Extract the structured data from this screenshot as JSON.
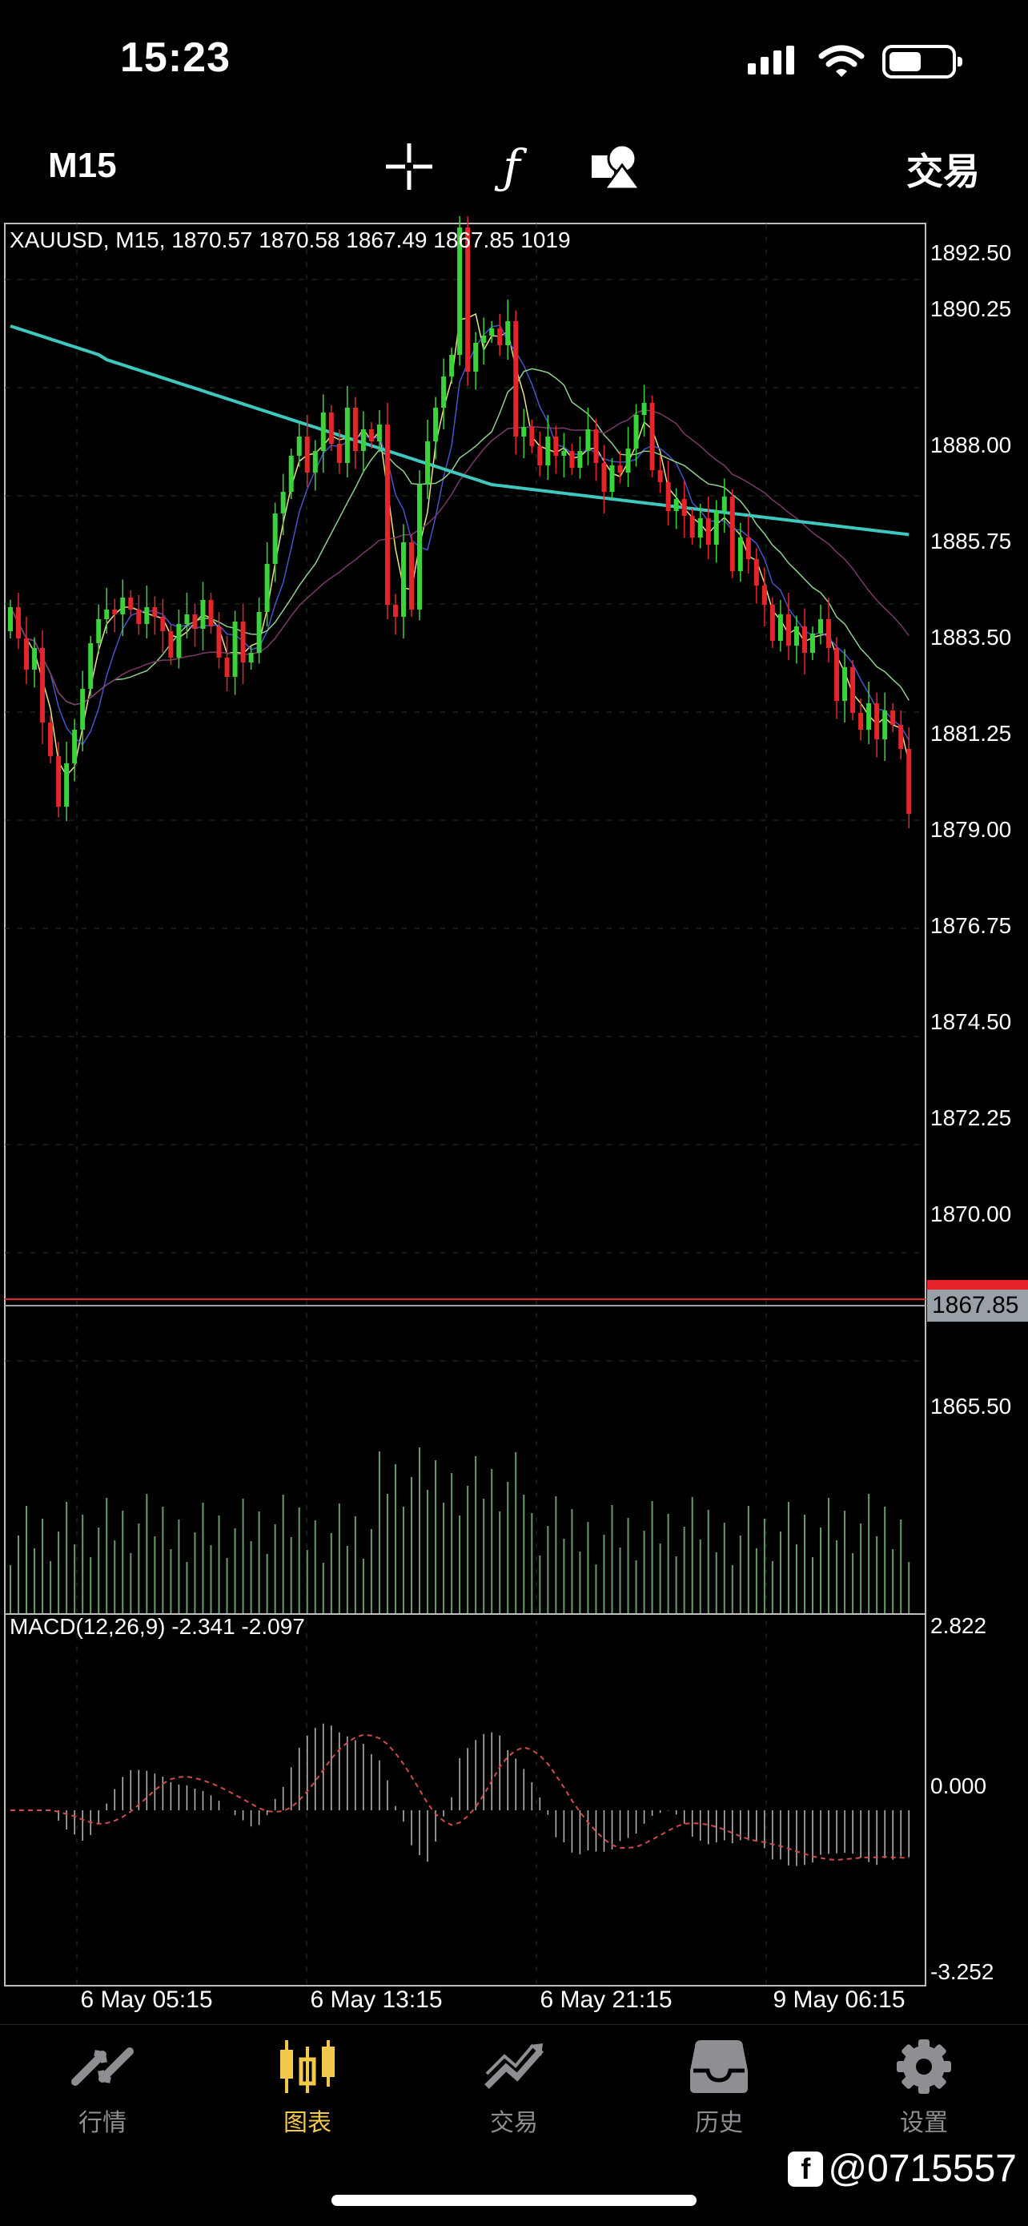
{
  "status_bar": {
    "time": "15:23"
  },
  "toolbar": {
    "period": "M15",
    "trade_label": "交易",
    "icons": [
      "crosshair-icon",
      "function-icon",
      "objects-icon"
    ]
  },
  "chart": {
    "info_line": "XAUUSD, M15, 1870.57 1870.58 1867.49 1867.85 1019",
    "current_price": "1867.85",
    "price_axis": [
      "1892.50",
      "1890.25",
      "1888.00",
      "1885.75",
      "1883.50",
      "1881.25",
      "1879.00",
      "1876.75",
      "1874.50",
      "1872.25",
      "1870.00",
      "1865.50"
    ],
    "macd_info": "MACD(12,26,9) -2.341 -2.097",
    "macd_axis": [
      "2.822",
      "0.000",
      "-3.252"
    ],
    "time_axis": [
      "6 May 05:15",
      "6 May 13:15",
      "6 May 21:15",
      "9 May 06:15"
    ],
    "colors": {
      "bull": "#3ad33a",
      "bear": "#e5252a",
      "ma_slow": "#3ec8c0",
      "macd_signal": "#d24a4a"
    }
  },
  "tabs": [
    {
      "label": "行情",
      "icon": "quotes-icon",
      "active": false
    },
    {
      "label": "图表",
      "icon": "chart-icon",
      "active": true
    },
    {
      "label": "交易",
      "icon": "trade-icon",
      "active": false
    },
    {
      "label": "历史",
      "icon": "history-icon",
      "active": false
    },
    {
      "label": "设置",
      "icon": "settings-icon",
      "active": false
    }
  ],
  "watermark": "@0715557"
}
